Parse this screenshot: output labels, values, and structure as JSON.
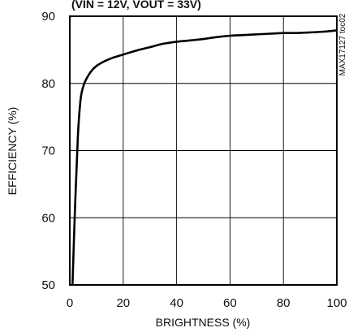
{
  "chart_data": {
    "type": "line",
    "title": "(VIN = 12V, VOUT = 33V)",
    "xlabel": "BRIGHTNESS (%)",
    "ylabel": "EFFICIENCY (%)",
    "xlim": [
      0,
      100
    ],
    "ylim": [
      50,
      90
    ],
    "xticks": [
      "0",
      "20",
      "40",
      "60",
      "80",
      "100"
    ],
    "yticks": [
      "50",
      "60",
      "70",
      "80",
      "90"
    ],
    "grid": true,
    "side_label": "MAX17127 toc02",
    "series": [
      {
        "name": "",
        "x": [
          1,
          2,
          3,
          4,
          5,
          6,
          8,
          10,
          13,
          16,
          20,
          25,
          30,
          35,
          40,
          45,
          50,
          55,
          60,
          65,
          70,
          75,
          80,
          85,
          90,
          95,
          100
        ],
        "y": [
          50,
          62,
          72,
          77.5,
          79.5,
          80.5,
          81.8,
          82.6,
          83.3,
          83.8,
          84.3,
          84.9,
          85.4,
          85.9,
          86.2,
          86.4,
          86.6,
          86.9,
          87.1,
          87.2,
          87.3,
          87.4,
          87.5,
          87.5,
          87.6,
          87.7,
          87.9
        ]
      }
    ]
  }
}
